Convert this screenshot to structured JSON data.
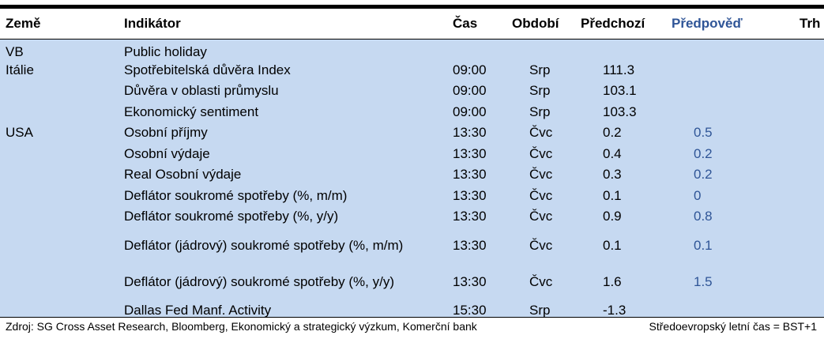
{
  "header": {
    "country": "Země",
    "indicator": "Indikátor",
    "time": "Čas",
    "period": "Období",
    "previous": "Předchozí",
    "forecast": "Předpověď",
    "market": "Trh"
  },
  "rows": [
    {
      "country": "VB",
      "indicator": "Public holiday",
      "time": "",
      "period": "",
      "previous": "",
      "forecast": "",
      "market": ""
    },
    {
      "country": "Itálie",
      "indicator": "Spotřebitelská důvěra Index",
      "time": "09:00",
      "period": "Srp",
      "previous": "111.3",
      "forecast": "",
      "market": ""
    },
    {
      "country": "",
      "indicator": "Důvěra v oblasti průmyslu",
      "time": "09:00",
      "period": "Srp",
      "previous": "103.1",
      "forecast": "",
      "market": ""
    },
    {
      "country": "",
      "indicator": "Ekonomický sentiment",
      "time": "09:00",
      "period": "Srp",
      "previous": "103.3",
      "forecast": "",
      "market": ""
    },
    {
      "country": "USA",
      "indicator": "Osobní příjmy",
      "time": "13:30",
      "period": "Čvc",
      "previous": "0.2",
      "forecast": "0.5",
      "market": ""
    },
    {
      "country": "",
      "indicator": "Osobní výdaje",
      "time": "13:30",
      "period": "Čvc",
      "previous": "0.4",
      "forecast": "0.2",
      "market": ""
    },
    {
      "country": "",
      "indicator": "Real Osobní výdaje",
      "time": "13:30",
      "period": "Čvc",
      "previous": "0.3",
      "forecast": "0.2",
      "market": ""
    },
    {
      "country": "",
      "indicator": "Deflátor soukromé spotřeby (%, m/m)",
      "time": "13:30",
      "period": "Čvc",
      "previous": "0.1",
      "forecast": "0",
      "market": ""
    },
    {
      "country": "",
      "indicator": "Deflátor soukromé spotřeby (%, y/y)",
      "time": "13:30",
      "period": "Čvc",
      "previous": "0.9",
      "forecast": "0.8",
      "market": ""
    },
    {
      "country": "",
      "indicator": "Deflátor (jádrový) soukromé spotřeby (%, m/m)",
      "time": "13:30",
      "period": "Čvc",
      "previous": "0.1",
      "forecast": "0.1",
      "market": ""
    },
    {
      "country": "",
      "indicator": "Deflátor (jádrový) soukromé spotřeby (%, y/y)",
      "time": "13:30",
      "period": "Čvc",
      "previous": "1.6",
      "forecast": "1.5",
      "market": ""
    },
    {
      "country": "",
      "indicator": "Dallas Fed Manf. Activity",
      "time": "15:30",
      "period": "Srp",
      "previous": "-1.3",
      "forecast": "",
      "market": ""
    }
  ],
  "footer": {
    "source": "Zdroj: SG Cross Asset Research, Bloomberg, Ekonomický a strategický výzkum, Komerční bank",
    "timezone": "Středoevropský letní čas = BST+1"
  },
  "colors": {
    "row_background": "#c6d9f1",
    "forecast_text": "#2f5597",
    "rule": "#000000"
  }
}
